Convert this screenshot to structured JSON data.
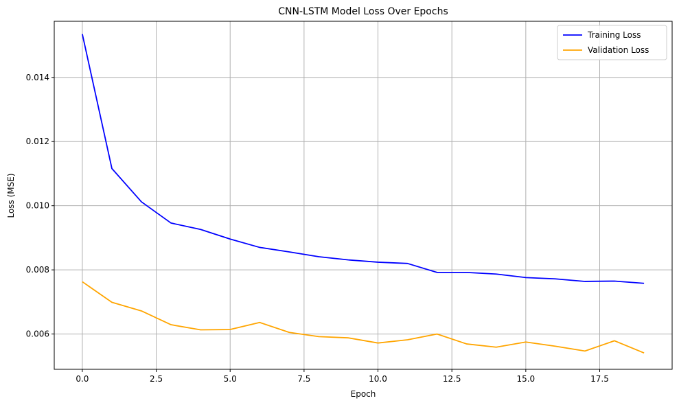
{
  "chart_data": {
    "type": "line",
    "title": "CNN-LSTM Model Loss Over Epochs",
    "xlabel": "Epoch",
    "ylabel": "Loss (MSE)",
    "xlim": [
      -0.95,
      19.95
    ],
    "ylim": [
      0.0049,
      0.01575
    ],
    "xticks": [
      0.0,
      2.5,
      5.0,
      7.5,
      10.0,
      12.5,
      15.0,
      17.5
    ],
    "xtick_labels": [
      "0.0",
      "2.5",
      "5.0",
      "7.5",
      "10.0",
      "12.5",
      "15.0",
      "17.5"
    ],
    "yticks": [
      0.006,
      0.008,
      0.01,
      0.012,
      0.014
    ],
    "ytick_labels": [
      "0.006",
      "0.008",
      "0.010",
      "0.012",
      "0.014"
    ],
    "grid": true,
    "legend_position": "top-right",
    "x": [
      0,
      1,
      2,
      3,
      4,
      5,
      6,
      7,
      8,
      9,
      10,
      11,
      12,
      13,
      14,
      15,
      16,
      17,
      18,
      19
    ],
    "series": [
      {
        "name": "Training Loss",
        "color": "#0000ff",
        "values": [
          0.01535,
          0.01116,
          0.01012,
          0.00946,
          0.00926,
          0.00896,
          0.0087,
          0.00856,
          0.00841,
          0.00831,
          0.00824,
          0.0082,
          0.00792,
          0.00792,
          0.00787,
          0.00776,
          0.00772,
          0.00764,
          0.00765,
          0.00758
        ]
      },
      {
        "name": "Validation Loss",
        "color": "#ffa500",
        "values": [
          0.00763,
          0.00699,
          0.00672,
          0.00629,
          0.00613,
          0.00614,
          0.00636,
          0.00605,
          0.00592,
          0.00588,
          0.00572,
          0.00582,
          0.006,
          0.00569,
          0.00559,
          0.00575,
          0.00562,
          0.00547,
          0.00579,
          0.00541
        ]
      }
    ]
  }
}
